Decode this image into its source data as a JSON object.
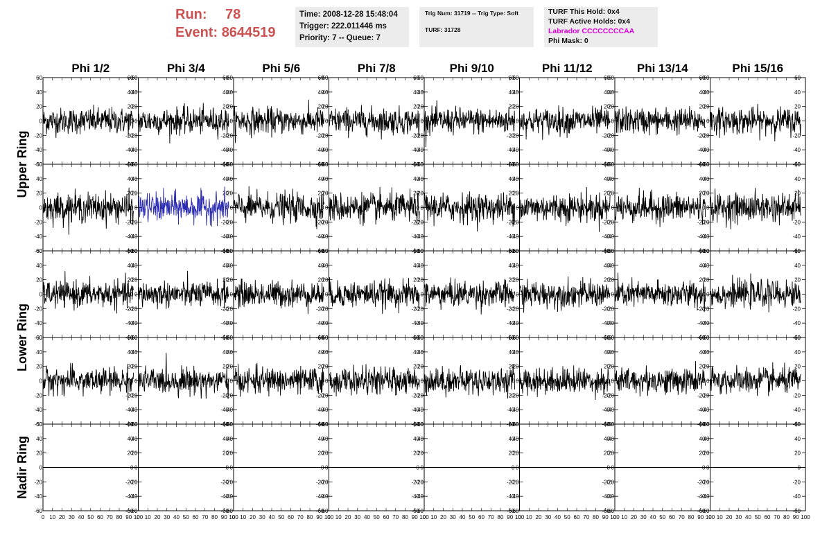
{
  "header": {
    "run_label": "Run:",
    "run_value": "78",
    "event_label": "Event:",
    "event_value": "8644519"
  },
  "info_time": {
    "time": "Time: 2008-12-28 15:48:04",
    "trigger": "Trigger: 222.011446 ms",
    "priority": "Priority: 7 -- Queue: 7"
  },
  "info_trig": {
    "trig": "Trig Num: 31719 -- Trig Type: Soft",
    "turf": "TURF: 31728"
  },
  "info_turf": {
    "this_hold": "TURF This Hold: 0x4",
    "active_holds": "TURF Active Holds: 0x4",
    "labrador": "Labrador CCCCCCCCAA",
    "phi_mask": "Phi Mask: 0"
  },
  "colors": {
    "run_text": "#cc5252",
    "labrador_text": "#e000e0",
    "trace_default": "#000000",
    "trace_highlight": "#2d2db4",
    "info_background": "#ececec"
  },
  "chart_data": {
    "type": "line",
    "columns": [
      "Phi 1/2",
      "Phi 3/4",
      "Phi 5/6",
      "Phi 7/8",
      "Phi 9/10",
      "Phi 11/12",
      "Phi 13/14",
      "Phi 15/16"
    ],
    "row_groups": [
      {
        "label": "Upper Ring",
        "rows": 2
      },
      {
        "label": "Lower Ring",
        "rows": 2
      },
      {
        "label": "Nadir Ring",
        "rows": 1
      }
    ],
    "xlim": [
      0,
      100
    ],
    "ylim": [
      -60,
      60
    ],
    "x_tick_values": [
      0,
      10,
      20,
      30,
      40,
      50,
      60,
      70,
      80,
      90,
      100
    ],
    "x_tick_labels": [
      "0",
      "10",
      "20",
      "30",
      "40",
      "50",
      "60",
      "70",
      "80",
      "90",
      "100"
    ],
    "y_tick_values": [
      60,
      40,
      20,
      0,
      -20,
      -40,
      -60
    ],
    "y_tick_labels": [
      "60",
      "40",
      "20",
      "0",
      "-20",
      "-40",
      "-60"
    ],
    "trace_samples": 260,
    "trace_x_range": [
      0,
      95
    ],
    "trace_amplitude_rms": [
      9,
      10,
      9,
      9,
      0
    ],
    "highlighted_panel": {
      "row": 1,
      "column": 1
    },
    "nadir_values": 0
  }
}
